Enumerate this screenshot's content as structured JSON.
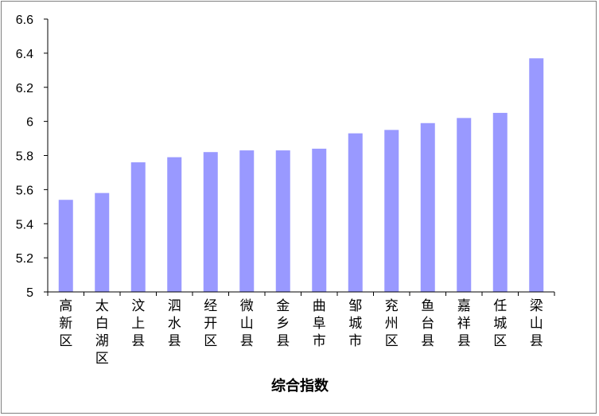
{
  "chart_data": {
    "type": "bar",
    "title": "",
    "xlabel": "综合指数",
    "ylabel": "",
    "ylim": [
      5,
      6.6
    ],
    "yticks": [
      "5",
      "5.2",
      "5.4",
      "5.6",
      "5.8",
      "6",
      "6.2",
      "6.4",
      "6.6"
    ],
    "grid": false,
    "legend": "none",
    "bar_color": "#9999ff",
    "categories": [
      "高新区",
      "太白湖区",
      "汶上县",
      "泗水县",
      "经开区",
      "微山县",
      "金乡县",
      "曲阜市",
      "邹城市",
      "兖州区",
      "鱼台县",
      "嘉祥县",
      "任城区",
      "梁山县"
    ],
    "values": [
      5.54,
      5.58,
      5.76,
      5.79,
      5.82,
      5.83,
      5.83,
      5.84,
      5.93,
      5.95,
      5.99,
      6.02,
      6.05,
      6.37
    ]
  }
}
